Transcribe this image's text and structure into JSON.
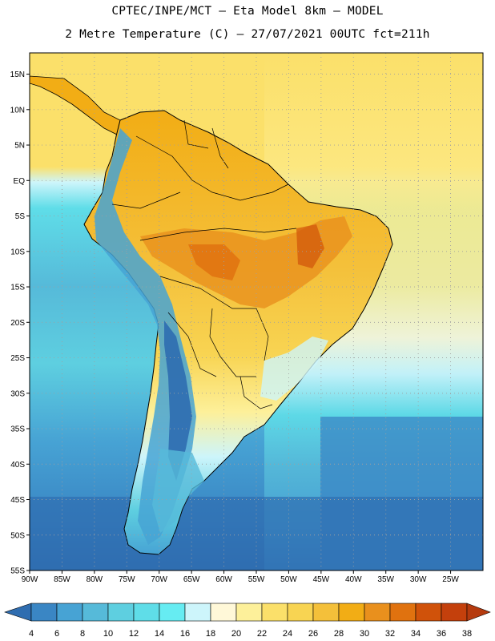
{
  "header": {
    "title_line1": "CPTEC/INPE/MCT –  Eta Model 8km – MODEL",
    "title_line2": "2 Metre Temperature (C) – 27/07/2021 00UTC fct=211h"
  },
  "map": {
    "lat_labels": [
      "15N",
      "10N",
      "5N",
      "EQ",
      "5S",
      "10S",
      "15S",
      "20S",
      "25S",
      "30S",
      "35S",
      "40S",
      "45S",
      "50S",
      "55S"
    ],
    "lon_labels": [
      "90W",
      "85W",
      "80W",
      "75W",
      "70W",
      "65W",
      "60W",
      "55W",
      "50W",
      "45W",
      "40W",
      "35W",
      "30W",
      "25W"
    ],
    "lat_range": [
      "18N",
      "55S"
    ],
    "lon_range": [
      "90W",
      "20W"
    ],
    "ocean_color": "#4ba3cf",
    "land_color": "#f5c242",
    "grid": "dotted"
  },
  "colorbar": {
    "ticks": [
      "4",
      "6",
      "8",
      "10",
      "12",
      "14",
      "16",
      "18",
      "20",
      "22",
      "24",
      "26",
      "28",
      "30",
      "32",
      "34",
      "36",
      "38"
    ],
    "colors": [
      "#2f6db0",
      "#3a86c4",
      "#47a3d4",
      "#56bad9",
      "#5ecfe0",
      "#5fdde8",
      "#66ecf2",
      "#cdf5fb",
      "#fff8d8",
      "#fdf09a",
      "#fbe06a",
      "#f8d452",
      "#f4c03a",
      "#f2ad15",
      "#e9901d",
      "#e0720f",
      "#d0520a",
      "#c4400c",
      "#b53a0e"
    ]
  }
}
